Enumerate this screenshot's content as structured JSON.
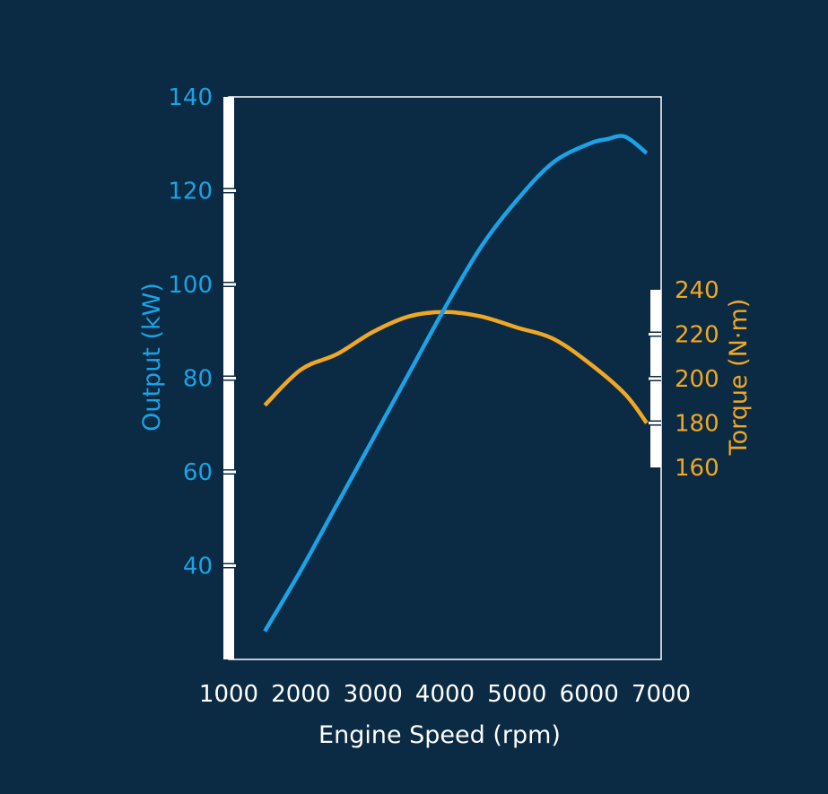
{
  "chart_data": {
    "type": "line",
    "xlabel": "Engine Speed (rpm)",
    "xlim": [
      1000,
      7000
    ],
    "xticks": [
      1000,
      2000,
      3000,
      4000,
      5000,
      6000,
      7000
    ],
    "y_left": {
      "label": "Output (kW)",
      "lim": [
        20,
        140
      ],
      "ticks": [
        40,
        60,
        80,
        100,
        120,
        140
      ],
      "color": "#1aa3e6"
    },
    "y_right": {
      "label": "Torque (N·m)",
      "lim": [
        160,
        240
      ],
      "ticks": [
        160,
        180,
        200,
        220,
        240
      ],
      "color": "#f0a824"
    },
    "series": [
      {
        "axis": "left",
        "color": "#1aa3e6",
        "x": [
          1500,
          2000,
          2500,
          3000,
          3500,
          4000,
          4500,
          5000,
          5500,
          6000,
          6250,
          6500,
          6800
        ],
        "values": [
          26,
          39,
          53,
          67,
          81,
          95,
          108,
          118,
          126,
          130,
          131,
          131.5,
          128
        ]
      },
      {
        "axis": "right",
        "color": "#f0a824",
        "x": [
          1500,
          2000,
          2500,
          3000,
          3500,
          4000,
          4500,
          5000,
          5500,
          6000,
          6500,
          6800
        ],
        "values": [
          188,
          204,
          211,
          221,
          228,
          230,
          228,
          223,
          218,
          207,
          193,
          180
        ]
      }
    ],
    "grid": false,
    "legend": "none"
  }
}
